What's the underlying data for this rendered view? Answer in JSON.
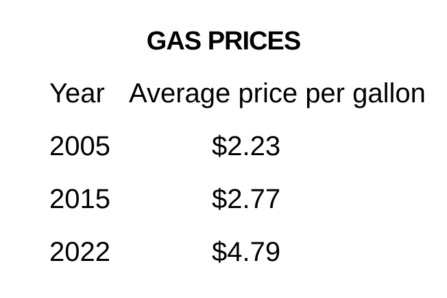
{
  "page": {
    "background_color": "#ffffff",
    "text_color": "#000000"
  },
  "table": {
    "title": "GAS PRICES",
    "columns": {
      "year": "Year",
      "price": "Average price per gallon"
    },
    "rows": [
      {
        "year": "2005",
        "price": "$2.23"
      },
      {
        "year": "2015",
        "price": "$2.77"
      },
      {
        "year": "2022",
        "price": "$4.79"
      }
    ]
  },
  "chart_data": {
    "type": "table",
    "title": "GAS PRICES",
    "columns": [
      "Year",
      "Average price per gallon"
    ],
    "rows": [
      [
        "2005",
        "$2.23"
      ],
      [
        "2015",
        "$2.77"
      ],
      [
        "2022",
        "$4.79"
      ]
    ],
    "series": [
      {
        "name": "Average price per gallon (USD)",
        "x": [
          2005,
          2015,
          2022
        ],
        "values": [
          2.23,
          2.77,
          4.79
        ]
      }
    ]
  }
}
